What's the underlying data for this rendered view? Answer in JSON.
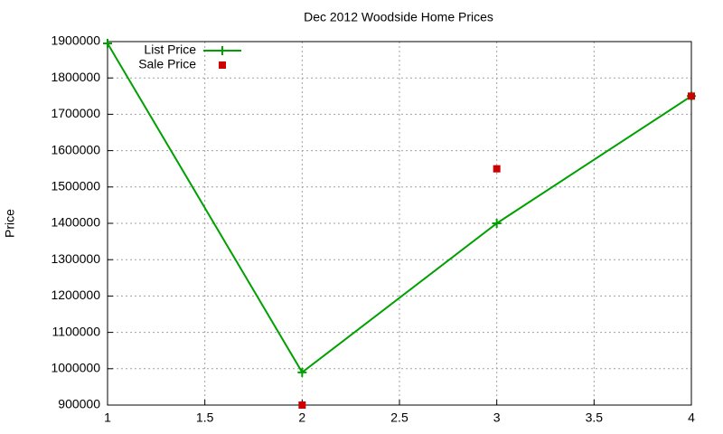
{
  "chart_data": {
    "type": "line",
    "title": "Dec 2012 Woodside Home Prices",
    "y_label": "Price",
    "x": [
      1,
      2,
      3,
      4
    ],
    "series": [
      {
        "name": "List Price",
        "color": "#00a000",
        "values": [
          1895000,
          990000,
          1400000,
          1750000
        ],
        "line": true,
        "marker": "plus"
      },
      {
        "name": "Sale Price",
        "color": "#cc0000",
        "values": [
          null,
          900000,
          1550000,
          1750000
        ],
        "line": false,
        "marker": "square"
      }
    ],
    "xlim": [
      1,
      4
    ],
    "xticks": [
      1,
      1.5,
      2,
      2.5,
      3,
      3.5,
      4
    ],
    "ylim": [
      900000,
      1900000
    ],
    "yticks": [
      900000,
      1000000,
      1100000,
      1200000,
      1300000,
      1400000,
      1500000,
      1600000,
      1700000,
      1800000,
      1900000
    ],
    "grid": true,
    "legend": "top-left"
  }
}
